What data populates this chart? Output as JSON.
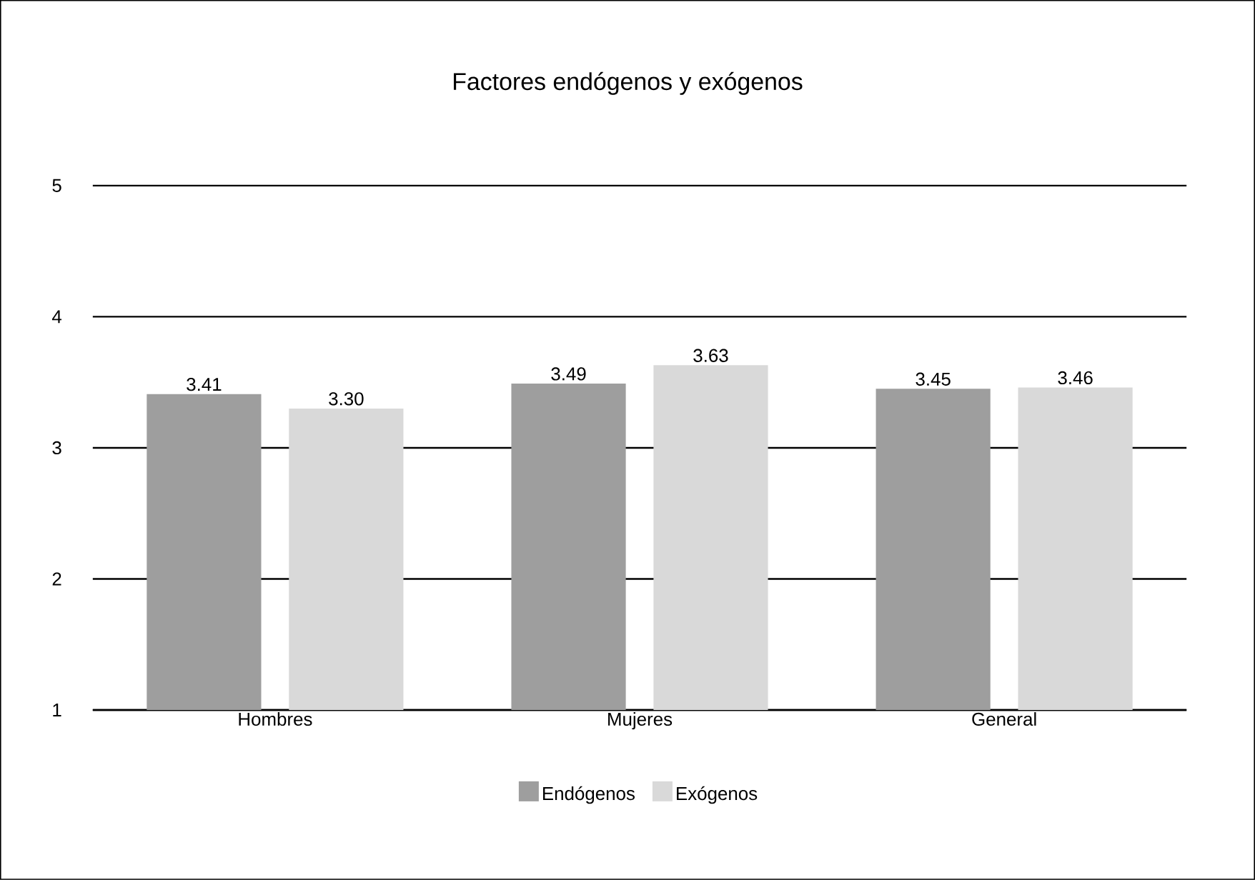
{
  "chart_data": {
    "type": "bar",
    "title": "Factores endógenos y exógenos",
    "categories": [
      "Hombres",
      "Mujeres",
      "General"
    ],
    "series": [
      {
        "name": "Endógenos",
        "color": "#9e9e9e",
        "values": [
          3.41,
          3.49,
          3.45
        ],
        "value_labels": [
          "3.41",
          "3.49",
          "3.45"
        ]
      },
      {
        "name": "Exógenos",
        "color": "#d9d9d9",
        "values": [
          3.3,
          3.63,
          3.46
        ],
        "value_labels": [
          "3.30",
          "3.63",
          "3.46"
        ]
      }
    ],
    "ylim": [
      1,
      5
    ],
    "yticks": [
      1,
      2,
      3,
      4,
      5
    ],
    "grid": "y",
    "legend": "bottom"
  }
}
